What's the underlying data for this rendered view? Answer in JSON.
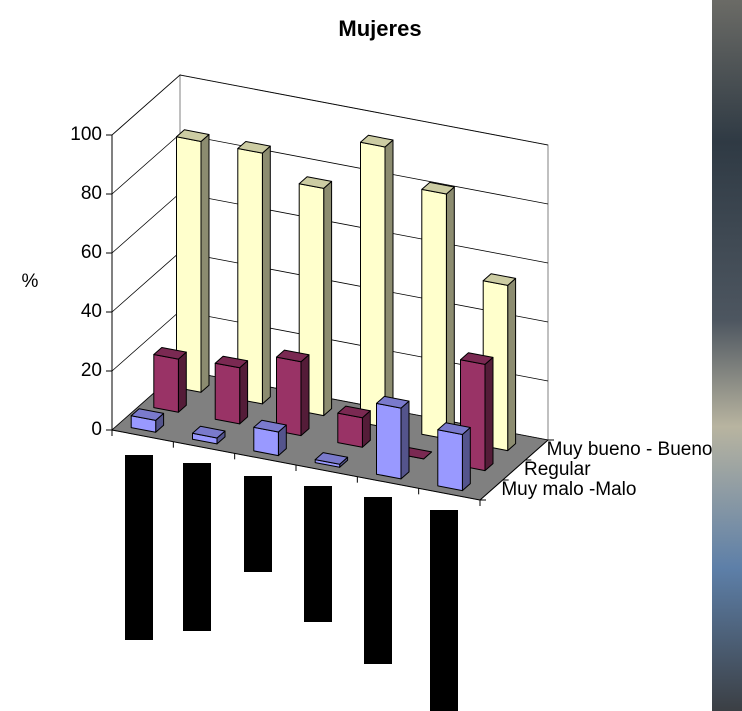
{
  "chart_data": {
    "type": "bar3d",
    "title": "Mujeres",
    "y_label": "%",
    "categories": [
      null,
      null,
      null,
      null,
      null,
      null
    ],
    "series": [
      {
        "name": "Muy malo -Malo",
        "color": "#9999ff",
        "values": [
          4,
          2,
          8,
          1,
          24,
          19
        ]
      },
      {
        "name": "Regular",
        "color": "#993366",
        "values": [
          18,
          19,
          25,
          10,
          0,
          36
        ]
      },
      {
        "name": "Muy bueno - Bueno",
        "color": "#ffffcc",
        "values": [
          85,
          85,
          77,
          95,
          83,
          56
        ]
      }
    ],
    "ylim": [
      0,
      100
    ],
    "yticks": [
      0,
      20,
      40,
      60,
      80,
      100
    ],
    "grid": true
  }
}
